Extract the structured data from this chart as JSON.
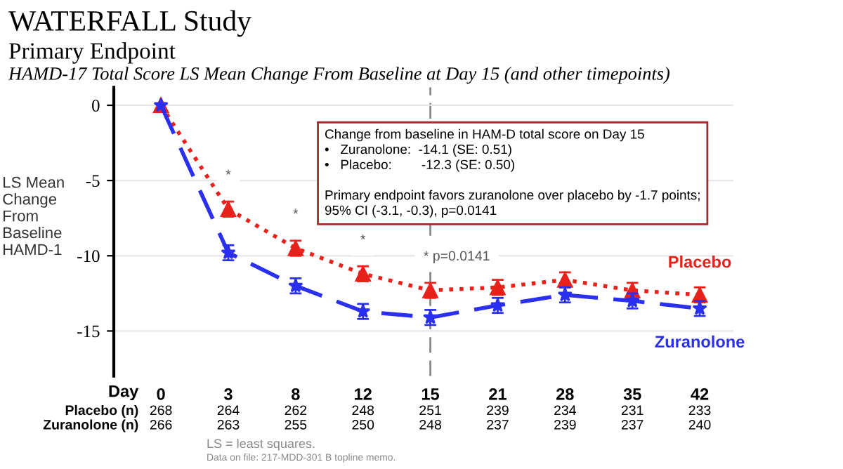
{
  "chart_data": {
    "type": "line",
    "title": "WATERFALL Study",
    "subtitle": "Primary Endpoint",
    "xlabel": "Day",
    "ylabel": "LS Mean\nChange\nFrom\nBaseline\nHAMD-1",
    "categories": [
      "0",
      "3",
      "8",
      "12",
      "15",
      "21",
      "28",
      "35",
      "42"
    ],
    "series": [
      {
        "name": "Placebo",
        "color": "#e8221b",
        "marker": "triangle",
        "line_style": "dotted",
        "values": [
          0,
          -6.9,
          -9.5,
          -11.2,
          -12.3,
          -12.1,
          -11.6,
          -12.3,
          -12.6
        ],
        "errors": [
          null,
          0.5,
          0.5,
          0.5,
          0.5,
          0.5,
          0.5,
          0.5,
          0.5
        ]
      },
      {
        "name": "Zuranolone",
        "color": "#2a2ff0",
        "marker": "star",
        "line_style": "dashed",
        "values": [
          0,
          -9.8,
          -12.0,
          -13.7,
          -14.1,
          -13.3,
          -12.6,
          -13.0,
          -13.5
        ],
        "errors": [
          null,
          0.5,
          0.5,
          0.5,
          0.5,
          0.5,
          0.5,
          0.5,
          0.5
        ]
      }
    ],
    "ylim": [
      -18,
      1.2
    ],
    "yticks": [
      0,
      -5,
      -10,
      -15
    ],
    "grid": "y",
    "legend": false,
    "ref_lines": [
      {
        "axis": "x",
        "value": "15",
        "label": null,
        "color": "#888888",
        "line_style": "dashed"
      }
    ],
    "annotations": [
      "HAMD-17 Total Score LS Mean Change From Baseline at Day 15 (and other timepoints)",
      "Change from baseline in HAM-D total score on Day 15\n•   Zuranolone:  -14.1 (SE: 0.51)\n•   Placebo:        -12.3 (SE: 0.50)\n\nPrimary endpoint favors zuranolone over placebo by -1.7 points;\n95% CI (-3.1, -0.3), p=0.0141",
      "*",
      "*",
      "*",
      "* p=0.0141",
      "Placebo (n)",
      "Zuranolone (n)",
      "268",
      "264",
      "262",
      "248",
      "251",
      "239",
      "234",
      "231",
      "233",
      "266",
      "263",
      "255",
      "250",
      "248",
      "237",
      "239",
      "237",
      "240",
      "LS = least squares.",
      "Data on file: 217-MDD-301 B topline memo."
    ]
  }
}
